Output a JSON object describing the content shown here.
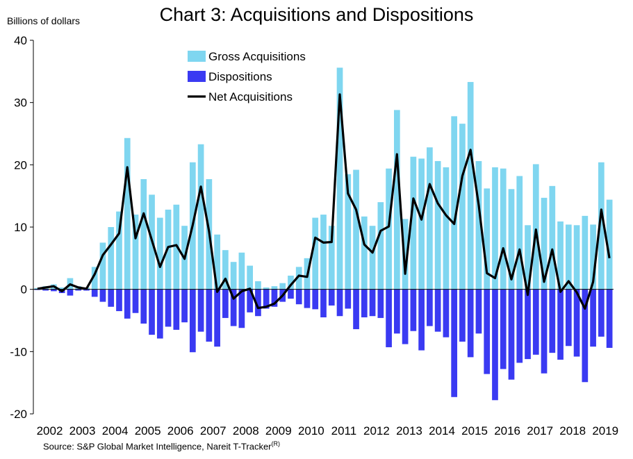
{
  "chart_data": {
    "type": "bar",
    "title": "Chart 3: Acquisitions and Dispositions",
    "ylabel": "Billions of dollars",
    "ylim": [
      -20,
      40
    ],
    "yticks": [
      -20,
      -10,
      0,
      10,
      20,
      30,
      40
    ],
    "x_tick_labels": [
      "2002",
      "2003",
      "2004",
      "2005",
      "2006",
      "2007",
      "2008",
      "2009",
      "2010",
      "2011",
      "2012",
      "2013",
      "2014",
      "2015",
      "2016",
      "2017",
      "2018",
      "2019"
    ],
    "frequency": "quarterly",
    "grid": false,
    "legend_position": "top-center",
    "series": [
      {
        "name": "Gross Acquisitions",
        "type": "bar",
        "color": "#7FD6F0",
        "values": [
          0.2,
          0.5,
          0.8,
          0.3,
          1.8,
          0.5,
          0.3,
          3.6,
          7.5,
          10.0,
          12.5,
          24.3,
          12.0,
          17.7,
          15.2,
          11.5,
          12.8,
          13.6,
          10.2,
          20.4,
          23.3,
          17.7,
          8.8,
          6.3,
          4.4,
          5.9,
          3.8,
          1.3,
          0.3,
          0.5,
          1.0,
          2.2,
          3.6,
          5.0,
          11.5,
          12.0,
          10.2,
          35.6,
          18.5,
          19.2,
          11.7,
          10.2,
          14.0,
          19.4,
          28.8,
          11.3,
          21.3,
          21.0,
          22.8,
          20.6,
          19.6,
          27.8,
          26.6,
          33.3,
          20.6,
          16.2,
          19.6,
          19.4,
          16.1,
          18.2,
          10.3,
          20.1,
          14.7,
          16.6,
          10.9,
          10.4,
          10.3,
          11.8,
          10.4,
          20.4,
          14.4
        ]
      },
      {
        "name": "Dispositions",
        "type": "bar",
        "color": "#3A3AF2",
        "values": [
          -0.1,
          -0.2,
          -0.3,
          -0.6,
          -1.0,
          -0.2,
          -0.2,
          -1.2,
          -2.0,
          -2.8,
          -3.5,
          -4.7,
          -3.8,
          -5.5,
          -7.3,
          -7.9,
          -6.0,
          -6.5,
          -5.3,
          -10.1,
          -6.8,
          -8.4,
          -9.2,
          -4.6,
          -5.9,
          -6.2,
          -3.7,
          -4.3,
          -3.1,
          -2.8,
          -2.0,
          -1.5,
          -2.4,
          -3.0,
          -3.2,
          -4.5,
          -2.6,
          -4.3,
          -3.1,
          -6.4,
          -4.5,
          -4.3,
          -4.6,
          -9.3,
          -7.1,
          -8.8,
          -6.7,
          -9.8,
          -5.9,
          -6.8,
          -7.7,
          -17.3,
          -8.4,
          -10.9,
          -7.1,
          -13.6,
          -17.8,
          -12.8,
          -14.5,
          -11.8,
          -11.2,
          -10.5,
          -13.5,
          -10.2,
          -11.3,
          -9.1,
          -10.8,
          -14.9,
          -9.2,
          -7.6,
          -9.4
        ]
      },
      {
        "name": "Net Acquisitions",
        "type": "line",
        "color": "#000000",
        "values": [
          0.1,
          0.3,
          0.5,
          -0.3,
          0.8,
          0.3,
          0.1,
          2.4,
          5.5,
          7.2,
          9.0,
          19.6,
          8.2,
          12.2,
          7.9,
          3.6,
          6.8,
          7.1,
          4.9,
          10.3,
          16.5,
          9.3,
          -0.4,
          1.7,
          -1.5,
          -0.3,
          0.1,
          -3.0,
          -2.8,
          -2.3,
          -1.0,
          0.7,
          2.2,
          2.0,
          8.3,
          7.5,
          7.6,
          31.3,
          15.4,
          12.8,
          7.2,
          5.9,
          9.4,
          10.1,
          21.7,
          2.5,
          14.6,
          11.2,
          16.9,
          13.8,
          11.9,
          10.5,
          18.2,
          22.4,
          13.5,
          2.6,
          1.8,
          6.6,
          1.6,
          6.4,
          -0.9,
          9.6,
          1.2,
          6.4,
          -0.4,
          1.3,
          -0.5,
          -3.1,
          1.2,
          12.8,
          5.0
        ]
      }
    ]
  },
  "source": {
    "text": "Source: S&P Global Market Intelligence, Nareit T-Tracker",
    "superscript": "(R)"
  }
}
